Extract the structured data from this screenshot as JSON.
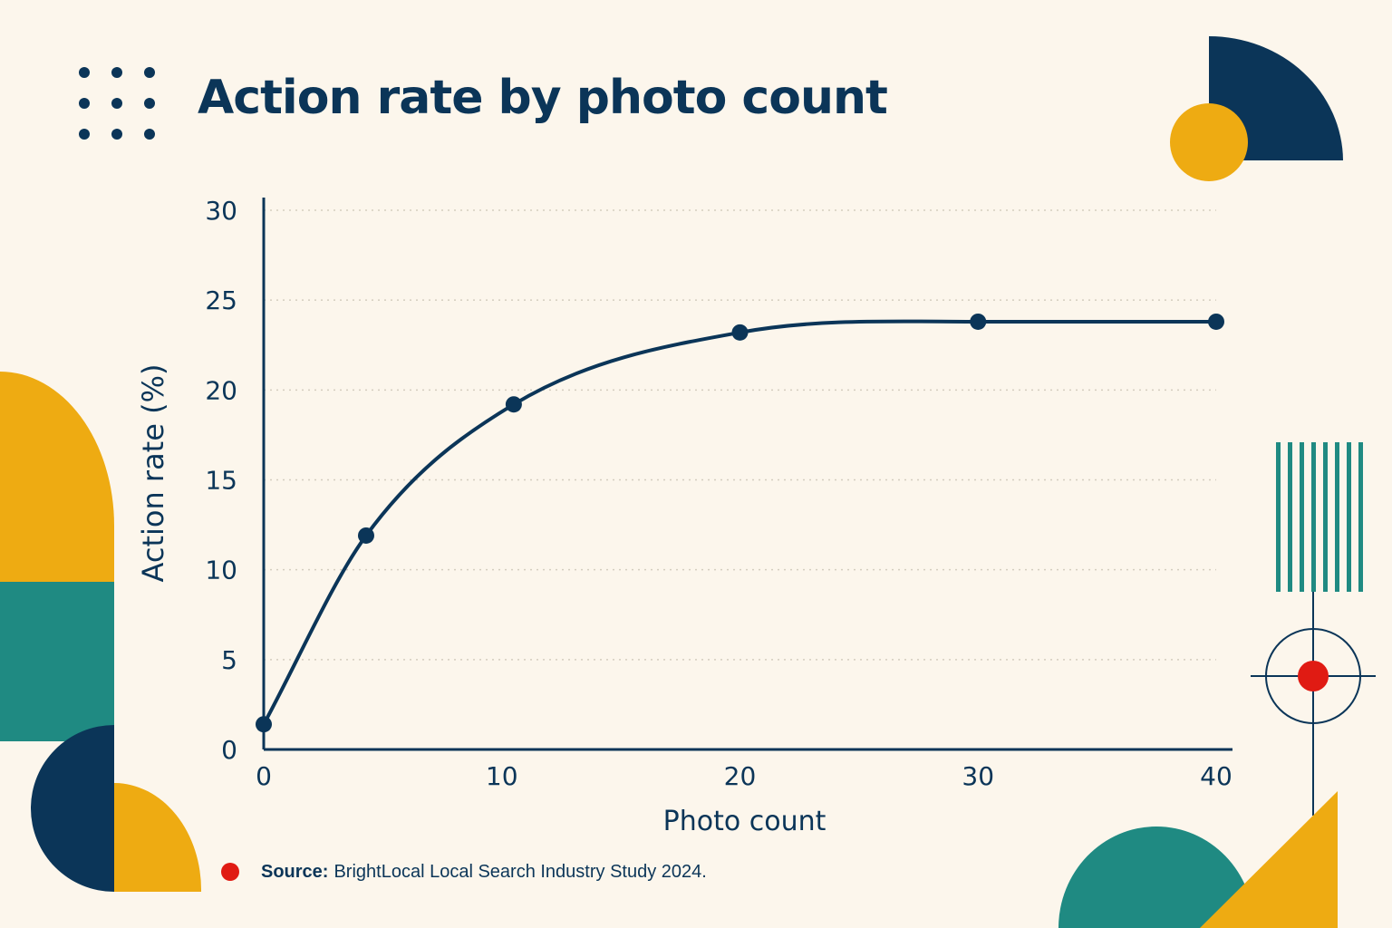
{
  "header": {
    "title": "Action rate by photo count"
  },
  "footer": {
    "source_label": "Source:",
    "source_text": "BrightLocal Local Search Industry Study 2024."
  },
  "colors": {
    "background": "#fcf6ec",
    "navy": "#0b3558",
    "amber": "#eeab12",
    "teal": "#1f8a82",
    "red": "#e01b13",
    "grid": "#d4cdbf"
  },
  "decorations": [
    "dot-grid-icon",
    "quarter-circle-shape",
    "amber-circle-shape",
    "amber-half-disc-shape",
    "teal-block-shape",
    "navy-half-circle-shape",
    "teal-stripes-shape",
    "crosshair-target-icon",
    "teal-circle-shape",
    "amber-triangle-shape",
    "red-dot-bullet"
  ],
  "chart_data": {
    "type": "line",
    "title": "Action rate by photo count",
    "xlabel": "Photo count",
    "ylabel": "Action rate (%)",
    "xlim": [
      0,
      40
    ],
    "ylim": [
      0,
      30
    ],
    "x_ticks": [
      "0",
      "10",
      "20",
      "30",
      "40"
    ],
    "y_ticks": [
      "0",
      "5",
      "10",
      "15",
      "20",
      "25",
      "30"
    ],
    "grid": "horizontal dotted",
    "series": [
      {
        "x": [
          0,
          4.3,
          10.5,
          20,
          30,
          40
        ],
        "y": [
          1.4,
          11.9,
          19.2,
          23.2,
          23.8,
          23.8
        ]
      }
    ]
  }
}
